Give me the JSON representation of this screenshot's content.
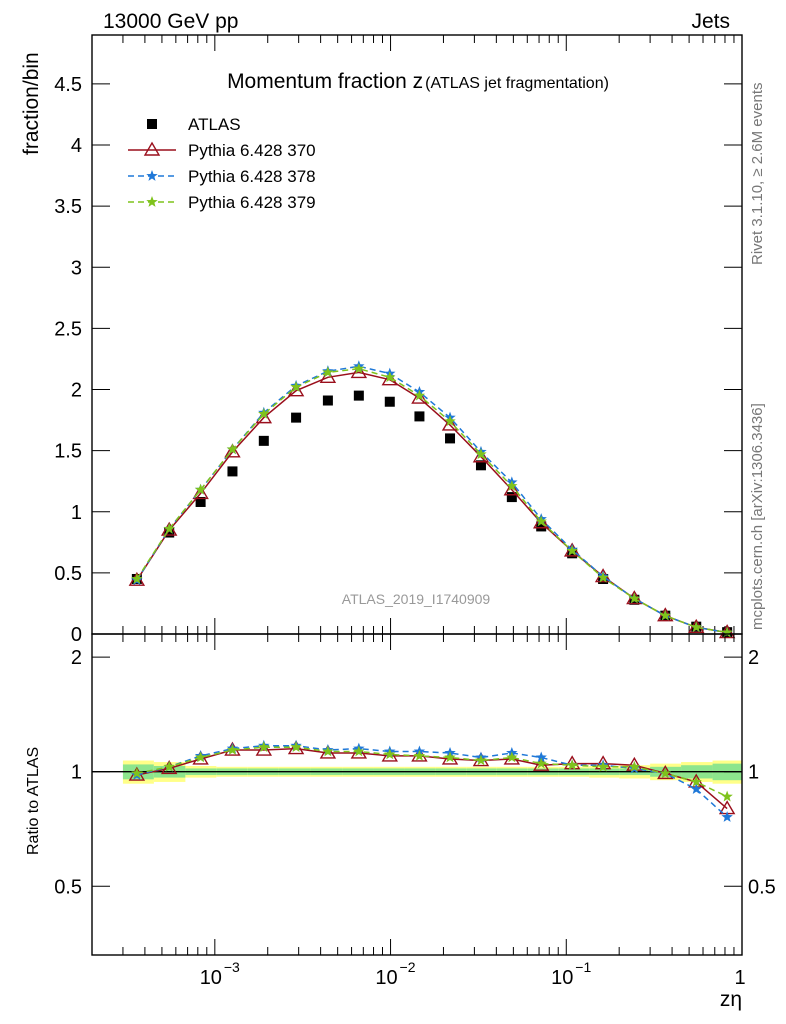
{
  "header": {
    "energy_label": "13000 GeV pp",
    "process_label": "Jets"
  },
  "side_labels": {
    "rivet": "Rivet 3.1.10, ≥ 2.6M events",
    "mcplots": "mcplots.cern.ch [arXiv:1306.3436]"
  },
  "analysis_id": "ATLAS_2019_I1740909",
  "colors": {
    "data": "#000000",
    "pythia_370": "#9a0f1c",
    "pythia_378": "#1f78d8",
    "pythia_379": "#7fc31c",
    "band_inner": "#8de58d",
    "band_outer": "#ffff88"
  },
  "chart_data": [
    {
      "type": "scatter",
      "panel": "main",
      "title_main": "Momentum fraction z",
      "title_sub": "(ATLAS jet fragmentation)",
      "ylabel": "fraction/bin",
      "xscale": "log",
      "xlim": [
        0.0002,
        1
      ],
      "ylim": [
        0,
        4.9
      ],
      "yticks": [
        0,
        0.5,
        1,
        1.5,
        2,
        2.5,
        3,
        3.5,
        4,
        4.5
      ],
      "ytick_labels": [
        "0",
        "0.5",
        "1",
        "1.5",
        "2",
        "2.5",
        "3",
        "3.5",
        "4",
        "4.5"
      ],
      "legend_position": "top-left",
      "x": [
        0.00036,
        0.00055,
        0.00083,
        0.00126,
        0.0019,
        0.0029,
        0.0044,
        0.0066,
        0.0099,
        0.0146,
        0.0218,
        0.0327,
        0.049,
        0.072,
        0.108,
        0.162,
        0.244,
        0.366,
        0.549,
        0.823
      ],
      "series": [
        {
          "name": "ATLAS",
          "marker": "square",
          "color_key": "data",
          "values": [
            0.45,
            0.83,
            1.08,
            1.33,
            1.58,
            1.77,
            1.91,
            1.95,
            1.9,
            1.78,
            1.6,
            1.38,
            1.12,
            0.88,
            0.66,
            0.45,
            0.28,
            0.15,
            0.06,
            0.015
          ]
        },
        {
          "name": "Pythia 6.428 370",
          "marker": "triangle",
          "color_key": "pythia_370",
          "dash": "solid",
          "values": [
            0.44,
            0.85,
            1.15,
            1.49,
            1.77,
            1.99,
            2.1,
            2.14,
            2.08,
            1.93,
            1.71,
            1.45,
            1.18,
            0.91,
            0.68,
            0.47,
            0.29,
            0.15,
            0.055,
            0.012
          ]
        },
        {
          "name": "Pythia 6.428 378",
          "marker": "star",
          "color_key": "pythia_378",
          "dash": "dashed",
          "values": [
            0.44,
            0.86,
            1.18,
            1.51,
            1.81,
            2.03,
            2.15,
            2.19,
            2.13,
            1.98,
            1.77,
            1.49,
            1.24,
            0.94,
            0.69,
            0.47,
            0.29,
            0.15,
            0.055,
            0.012
          ]
        },
        {
          "name": "Pythia 6.428 379",
          "marker": "star",
          "color_key": "pythia_379",
          "dash": "dashed",
          "values": [
            0.45,
            0.86,
            1.18,
            1.51,
            1.8,
            2.02,
            2.14,
            2.17,
            2.1,
            1.95,
            1.74,
            1.47,
            1.21,
            0.92,
            0.68,
            0.46,
            0.29,
            0.15,
            0.055,
            0.012
          ]
        }
      ]
    },
    {
      "type": "line",
      "panel": "ratio",
      "ylabel": "Ratio to ATLAS",
      "xlabel": "zη",
      "xscale": "log",
      "xlim": [
        0.0002,
        1
      ],
      "ylim": [
        0.33,
        2.3
      ],
      "yticks": [
        0.5,
        1,
        2
      ],
      "ytick_labels": [
        "0.5",
        "1",
        "2"
      ],
      "xtick_labels": {
        "1e-3": "10",
        "1e-2": "10",
        "1e-1": "10",
        "exp": "−3",
        "exp2": "−2",
        "exp3": "−1",
        "one": "1"
      },
      "band_edges": [
        0.0003,
        0.00045,
        0.00068,
        0.00102,
        0.00154,
        0.0023,
        0.0035,
        0.0053,
        0.008,
        0.012,
        0.018,
        0.027,
        0.04,
        0.06,
        0.09,
        0.135,
        0.2,
        0.3,
        0.45,
        0.68,
        1.0
      ],
      "band_inner": [
        0.045,
        0.035,
        0.02,
        0.02,
        0.02,
        0.02,
        0.02,
        0.02,
        0.02,
        0.02,
        0.02,
        0.02,
        0.02,
        0.02,
        0.02,
        0.02,
        0.02,
        0.03,
        0.04,
        0.05
      ],
      "band_outer": [
        0.07,
        0.06,
        0.035,
        0.03,
        0.03,
        0.03,
        0.03,
        0.03,
        0.03,
        0.03,
        0.03,
        0.03,
        0.03,
        0.03,
        0.03,
        0.035,
        0.04,
        0.05,
        0.06,
        0.07
      ],
      "x": [
        0.00036,
        0.00055,
        0.00083,
        0.00126,
        0.0019,
        0.0029,
        0.0044,
        0.0066,
        0.0099,
        0.0146,
        0.0218,
        0.0327,
        0.049,
        0.072,
        0.108,
        0.162,
        0.244,
        0.366,
        0.549,
        0.823
      ],
      "series": [
        {
          "name": "Pythia 6.428 370",
          "marker": "triangle",
          "color_key": "pythia_370",
          "dash": "solid",
          "values": [
            0.98,
            1.02,
            1.08,
            1.14,
            1.14,
            1.15,
            1.12,
            1.12,
            1.1,
            1.1,
            1.08,
            1.07,
            1.08,
            1.04,
            1.05,
            1.05,
            1.04,
            0.99,
            0.94,
            0.8
          ]
        },
        {
          "name": "Pythia 6.428 378",
          "marker": "star",
          "color_key": "pythia_378",
          "dash": "dashed",
          "values": [
            0.98,
            1.03,
            1.1,
            1.15,
            1.17,
            1.17,
            1.14,
            1.15,
            1.13,
            1.13,
            1.12,
            1.09,
            1.12,
            1.09,
            1.04,
            1.04,
            1.02,
            0.99,
            0.9,
            0.76
          ]
        },
        {
          "name": "Pythia 6.428 379",
          "marker": "star",
          "color_key": "pythia_379",
          "dash": "dashed",
          "values": [
            0.99,
            1.03,
            1.09,
            1.14,
            1.16,
            1.16,
            1.13,
            1.13,
            1.11,
            1.1,
            1.09,
            1.07,
            1.09,
            1.05,
            1.04,
            1.03,
            1.03,
            0.99,
            0.94,
            0.86
          ]
        }
      ]
    }
  ]
}
